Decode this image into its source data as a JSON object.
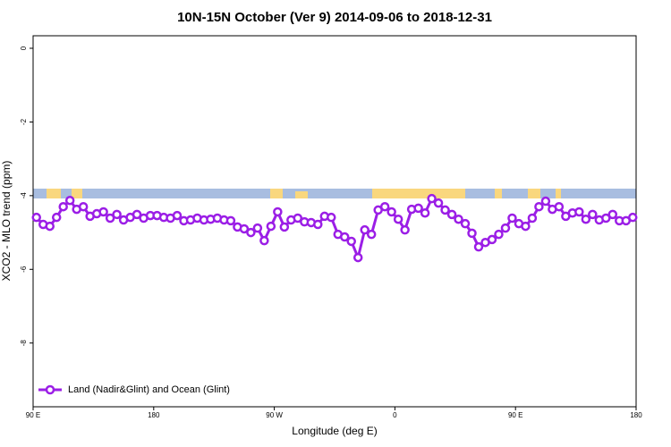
{
  "chart_data": {
    "type": "line",
    "title": "10N-15N October (Ver 9)   2014-09-06 to 2018-12-31",
    "x_label": "Longitude (deg E)",
    "y_label": "XCO2 - MLO trend (ppm)",
    "xlim": [
      90,
      540
    ],
    "ylim": [
      -9.73,
      0.34
    ],
    "xticks": [
      {
        "value": 90,
        "label": "90 E"
      },
      180,
      {
        "value": 270,
        "label": "90 W"
      },
      {
        "value": 360,
        "label": "0"
      },
      {
        "value": 450,
        "label": "90 E"
      },
      {
        "value": 540,
        "label": "180"
      }
    ],
    "yticks": [
      0,
      -2,
      -4,
      -6,
      -8
    ],
    "legend": "bottom-left",
    "x": [
      92.5,
      97.5,
      102.5,
      107.5,
      112.5,
      117.5,
      122.5,
      127.5,
      132.5,
      137.5,
      142.5,
      147.5,
      152.5,
      157.5,
      162.5,
      167.5,
      172.5,
      177.5,
      182.5,
      187.5,
      192.5,
      197.5,
      202.5,
      207.5,
      212.5,
      217.5,
      222.5,
      227.5,
      232.5,
      237.5,
      242.5,
      247.5,
      252.5,
      257.5,
      262.5,
      267.5,
      272.5,
      277.5,
      282.5,
      287.5,
      292.5,
      297.5,
      302.5,
      307.5,
      312.5,
      317.5,
      322.5,
      327.5,
      332.5,
      337.5,
      342.5,
      347.5,
      352.5,
      357.5,
      362.5,
      367.5,
      372.5,
      377.5,
      382.5,
      387.5,
      392.5,
      397.5,
      402.5,
      407.5,
      412.5,
      417.5,
      422.5,
      427.5,
      432.5,
      437.5,
      442.5,
      447.5,
      452.5,
      457.5,
      462.5,
      467.5,
      472.5,
      477.5,
      482.5,
      487.5,
      492.5,
      497.5,
      502.5,
      507.5,
      512.5,
      517.5,
      522.5,
      527.5,
      532.5,
      537.5
    ],
    "series": [
      {
        "name": "Land (Nadir&Glint) and Ocean (Glint)",
        "color": "#9b1ee6",
        "values": [
          -4.59,
          -4.78,
          -4.83,
          -4.59,
          -4.3,
          -4.13,
          -4.37,
          -4.3,
          -4.56,
          -4.49,
          -4.44,
          -4.61,
          -4.51,
          -4.66,
          -4.59,
          -4.51,
          -4.61,
          -4.54,
          -4.54,
          -4.59,
          -4.61,
          -4.54,
          -4.68,
          -4.66,
          -4.61,
          -4.66,
          -4.64,
          -4.61,
          -4.66,
          -4.68,
          -4.85,
          -4.9,
          -5.0,
          -4.88,
          -5.22,
          -4.83,
          -4.44,
          -4.85,
          -4.66,
          -4.61,
          -4.71,
          -4.73,
          -4.78,
          -4.56,
          -4.59,
          -5.05,
          -5.12,
          -5.24,
          -5.68,
          -4.93,
          -5.05,
          -4.39,
          -4.3,
          -4.44,
          -4.64,
          -4.93,
          -4.37,
          -4.34,
          -4.47,
          -4.08,
          -4.2,
          -4.39,
          -4.51,
          -4.64,
          -4.76,
          -5.02,
          -5.39,
          -5.27,
          -5.19,
          -5.05,
          -4.88,
          -4.61,
          -4.76,
          -4.83,
          -4.61,
          -4.3,
          -4.15,
          -4.37,
          -4.3,
          -4.56,
          -4.47,
          -4.44,
          -4.64,
          -4.51,
          -4.66,
          -4.61,
          -4.51,
          -4.68,
          -4.68,
          -4.59
        ]
      }
    ]
  }
}
